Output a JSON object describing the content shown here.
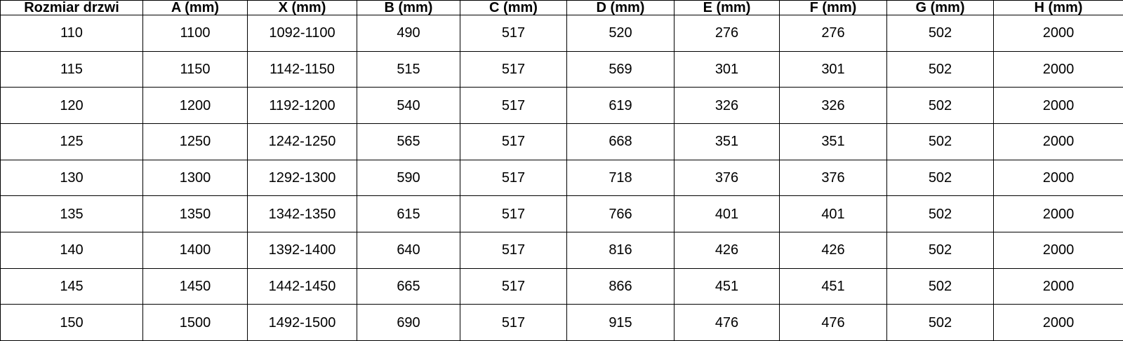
{
  "style": {
    "border_color": "#000000",
    "background_color": "#ffffff",
    "text_color": "#000000"
  },
  "table": {
    "headers": [
      "Rozmiar drzwi",
      "A (mm)",
      "X (mm)",
      "B (mm)",
      "C (mm)",
      "D (mm)",
      "E (mm)",
      "F (mm)",
      "G (mm)",
      "H (mm)"
    ],
    "rows": [
      [
        "110",
        "1100",
        "1092-1100",
        "490",
        "517",
        "520",
        "276",
        "276",
        "502",
        "2000"
      ],
      [
        "115",
        "1150",
        "1142-1150",
        "515",
        "517",
        "569",
        "301",
        "301",
        "502",
        "2000"
      ],
      [
        "120",
        "1200",
        "1192-1200",
        "540",
        "517",
        "619",
        "326",
        "326",
        "502",
        "2000"
      ],
      [
        "125",
        "1250",
        "1242-1250",
        "565",
        "517",
        "668",
        "351",
        "351",
        "502",
        "2000"
      ],
      [
        "130",
        "1300",
        "1292-1300",
        "590",
        "517",
        "718",
        "376",
        "376",
        "502",
        "2000"
      ],
      [
        "135",
        "1350",
        "1342-1350",
        "615",
        "517",
        "766",
        "401",
        "401",
        "502",
        "2000"
      ],
      [
        "140",
        "1400",
        "1392-1400",
        "640",
        "517",
        "816",
        "426",
        "426",
        "502",
        "2000"
      ],
      [
        "145",
        "1450",
        "1442-1450",
        "665",
        "517",
        "866",
        "451",
        "451",
        "502",
        "2000"
      ],
      [
        "150",
        "1500",
        "1492-1500",
        "690",
        "517",
        "915",
        "476",
        "476",
        "502",
        "2000"
      ]
    ]
  }
}
